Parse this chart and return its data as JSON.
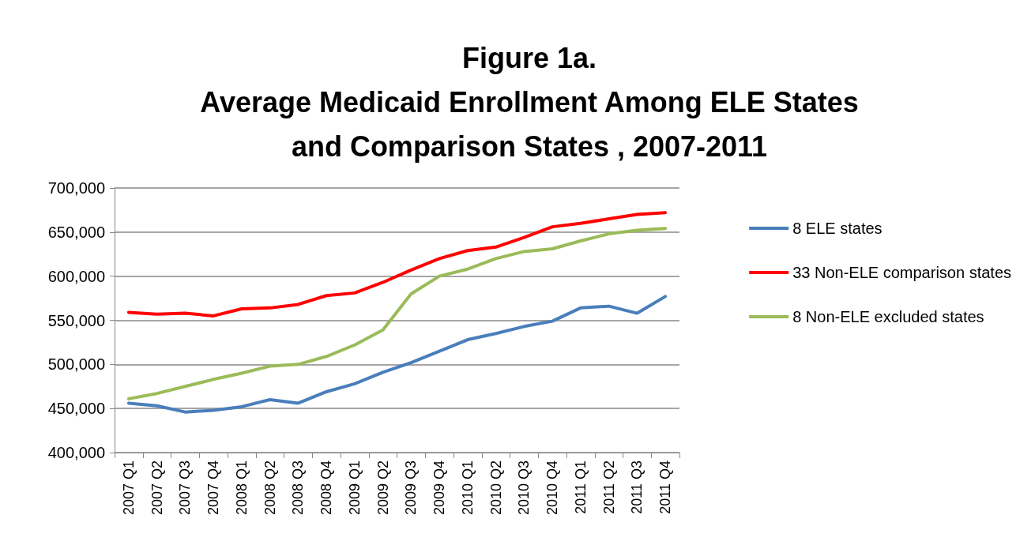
{
  "chart_data": {
    "type": "line",
    "title": "Figure 1a.\nAverage Medicaid Enrollment Among ELE States\nand Comparison States , 2007-2011",
    "categories": [
      "2007 Q1",
      "2007 Q2",
      "2007 Q3",
      "2007 Q4",
      "2008 Q1",
      "2008 Q2",
      "2008 Q3",
      "2008 Q4",
      "2009 Q1",
      "2009 Q2",
      "2009 Q3",
      "2009 Q4",
      "2010 Q1",
      "2010 Q2",
      "2010 Q3",
      "2010 Q4",
      "2011 Q1",
      "2011 Q2",
      "2011 Q3",
      "2011 Q4"
    ],
    "series": [
      {
        "name": "8 ELE states",
        "color": "#4a7ebb",
        "values": [
          456000,
          453000,
          446000,
          448000,
          452000,
          460000,
          456000,
          469000,
          478000,
          491000,
          502000,
          515000,
          528000,
          535000,
          543000,
          549000,
          564000,
          566000,
          558000,
          577000
        ]
      },
      {
        "name": "33 Non-ELE comparison states",
        "color": "#ff0000",
        "values": [
          559000,
          557000,
          558000,
          555000,
          563000,
          564000,
          568000,
          578000,
          581000,
          593000,
          607000,
          620000,
          629000,
          633000,
          644000,
          656000,
          660000,
          665000,
          670000,
          672000
        ]
      },
      {
        "name": "8 Non-ELE excluded states",
        "color": "#9bbb59",
        "values": [
          461000,
          467000,
          475000,
          483000,
          490000,
          498000,
          500000,
          509000,
          522000,
          539000,
          580000,
          600000,
          608000,
          620000,
          628000,
          631000,
          640000,
          648000,
          652000,
          654000
        ]
      }
    ],
    "ylim": [
      400000,
      700000
    ],
    "yticks": [
      {
        "value": 400000,
        "label": "400,000"
      },
      {
        "value": 450000,
        "label": "450,000"
      },
      {
        "value": 500000,
        "label": "500,000"
      },
      {
        "value": 550000,
        "label": "550,000"
      },
      {
        "value": 600000,
        "label": "600,000"
      },
      {
        "value": 650000,
        "label": "650,000"
      },
      {
        "value": 700000,
        "label": "700,000"
      }
    ],
    "grid": "y",
    "legend": "right",
    "marker": "none",
    "line_style": "solid"
  }
}
